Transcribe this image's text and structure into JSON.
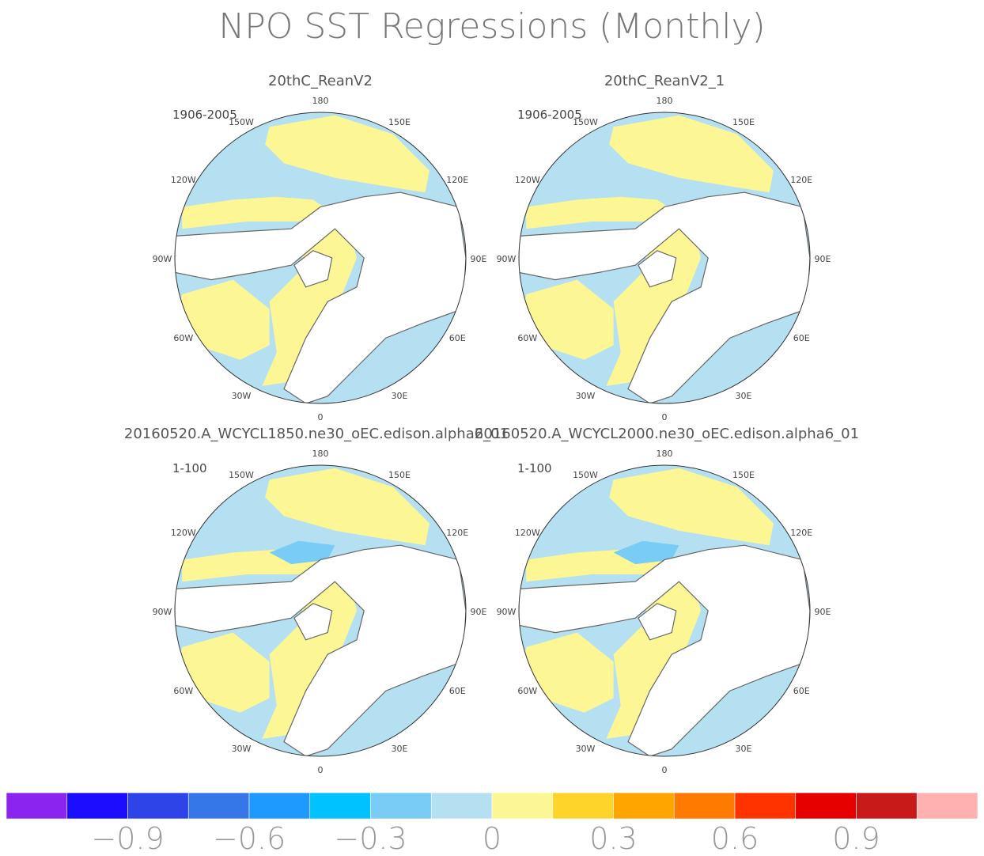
{
  "chart_data": {
    "type": "heatmap",
    "title": "NPO SST Regressions (Monthly)",
    "projection": "north polar stereographic",
    "longitude_labels": [
      "180",
      "150E",
      "120E",
      "90E",
      "60E",
      "30E",
      "0",
      "30W",
      "60W",
      "90W",
      "120W",
      "150W"
    ],
    "panels": [
      {
        "title": "20thC_ReanV2",
        "period": "1906-2005"
      },
      {
        "title": "20thC_ReanV2_1",
        "period": "1906-2005"
      },
      {
        "title": "20160520.A_WCYCL1850.ne30_oEC.edison.alpha6_01",
        "period": "1-100"
      },
      {
        "title": "20160520.A_WCYCL2000.ne30_oEC.edison.alpha6_01",
        "period": "1-100"
      }
    ],
    "colorbar": {
      "colors": [
        "#8C24F0",
        "#1C0DFF",
        "#2E44E8",
        "#3577E8",
        "#1E9AFF",
        "#00C2FF",
        "#78CCF5",
        "#B4E0F2",
        "#FCF794",
        "#FFD42A",
        "#FFA500",
        "#FF7A00",
        "#FF3300",
        "#E60000",
        "#C91A1A",
        "#FFB0B0"
      ],
      "tick_labels": [
        "-0.9",
        "-0.6",
        "-0.3",
        "0",
        "0.3",
        "0.6",
        "0.9"
      ],
      "tick_values": [
        -0.9,
        -0.6,
        -0.3,
        0,
        0.3,
        0.6,
        0.9
      ],
      "range": [
        -1.2,
        1.2
      ]
    },
    "colors": {
      "land": "#ffffff",
      "coast": "#666666",
      "pos_weak": "#FCF794",
      "neg_weak": "#B4E0F2",
      "neg_mod": "#78CCF5"
    }
  }
}
